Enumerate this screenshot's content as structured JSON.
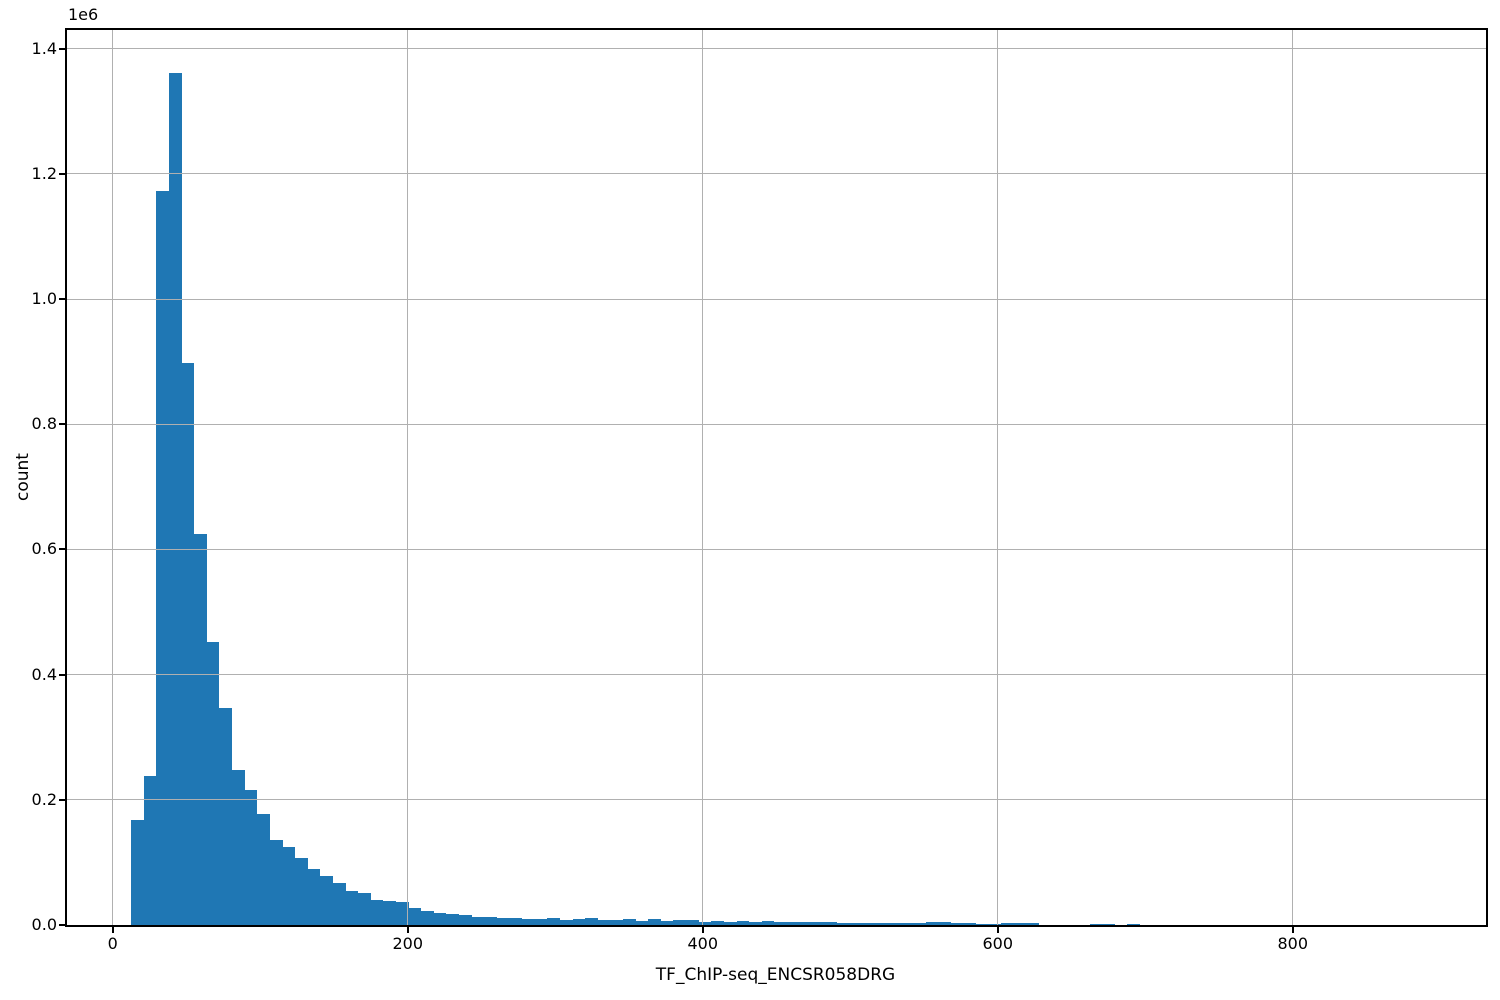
{
  "figure": {
    "background": "#ffffff",
    "bar_color": "#1f77b4",
    "grid_color": "#b0b0b0",
    "spine_color": "#000000",
    "text_color": "#000000"
  },
  "chart_data": {
    "type": "bar",
    "subtype": "histogram",
    "title": "",
    "xlabel": "TF_ChIP-seq_ENCSR058DRG",
    "ylabel": "count",
    "y_offset_label": "1e6",
    "grid": true,
    "legend_position": "none",
    "xlim": [
      -31,
      931
    ],
    "ylim": [
      0,
      1430000
    ],
    "x_ticks": [
      0,
      200,
      400,
      600,
      800
    ],
    "x_tick_labels": [
      "0",
      "200",
      "400",
      "600",
      "800"
    ],
    "y_ticks": [
      0,
      200000,
      400000,
      600000,
      800000,
      1000000,
      1200000,
      1400000
    ],
    "y_tick_labels": [
      "0.0",
      "0.2",
      "0.4",
      "0.6",
      "0.8",
      "1.0",
      "1.2",
      "1.4"
    ],
    "bin_start": 12.5,
    "bin_width": 8.55,
    "counts": [
      168000,
      238000,
      1172000,
      1362000,
      898000,
      624000,
      452000,
      347000,
      247000,
      216000,
      178000,
      136000,
      124000,
      107000,
      89000,
      78000,
      67000,
      55000,
      51000,
      39500,
      38000,
      36000,
      27000,
      22000,
      19000,
      17500,
      15500,
      13500,
      12800,
      11500,
      10500,
      10000,
      9000,
      12000,
      8000,
      9500,
      11000,
      7500,
      7500,
      10000,
      7000,
      9000,
      6500,
      8000,
      8000,
      5500,
      5800,
      5000,
      5800,
      5500,
      6300,
      5500,
      4200,
      4500,
      4200,
      4200,
      4000,
      2600,
      2600,
      2600,
      2600,
      2600,
      2600,
      5300,
      5300,
      2600,
      2600,
      1600,
      1600,
      3200,
      3200,
      3200,
      0,
      0,
      0,
      0,
      2100,
      2100,
      0,
      1600
    ]
  }
}
